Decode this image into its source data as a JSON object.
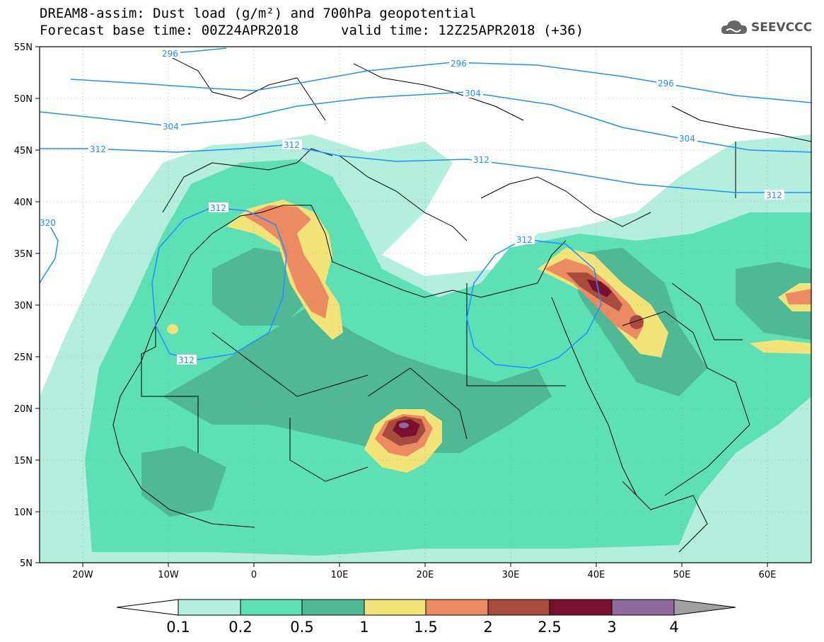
{
  "header": {
    "title_line1": "DREAM8-assim: Dust load (g/m²) and 700hPa geopotential",
    "base_time": "Forecast base time: 00Z24APR2018",
    "valid_time": "valid time: 12Z25APR2018 (+36)"
  },
  "logo": {
    "text": "SEEVCCC",
    "icon": "cloud-icon"
  },
  "map": {
    "lat_labels": [
      "55N",
      "50N",
      "45N",
      "40N",
      "35N",
      "30N",
      "25N",
      "20N",
      "15N",
      "10N",
      "5N"
    ],
    "lon_labels": [
      "20W",
      "10W",
      "0",
      "10E",
      "20E",
      "30E",
      "40E",
      "50E",
      "60E"
    ],
    "extent": {
      "lon_min": -25,
      "lon_max": 65,
      "lat_min": 5,
      "lat_max": 55
    },
    "contour_labels": [
      "296",
      "296",
      "296",
      "304",
      "304",
      "304",
      "312",
      "312",
      "312",
      "312",
      "312",
      "312",
      "312",
      "320"
    ]
  },
  "colorbar": {
    "tick_labels": [
      "0.1",
      "0.2",
      "0.5",
      "1",
      "1.5",
      "2",
      "2.5",
      "3",
      "4"
    ],
    "colors": [
      "#b4eedc",
      "#5de0b3",
      "#4fb894",
      "#f3e47a",
      "#ec8b62",
      "#a84a3c",
      "#7a0f2e",
      "#8e6aa0"
    ],
    "under_color": "#ffffff",
    "over_color": "#a0a0a0"
  },
  "contour_color": "#1e90ff"
}
